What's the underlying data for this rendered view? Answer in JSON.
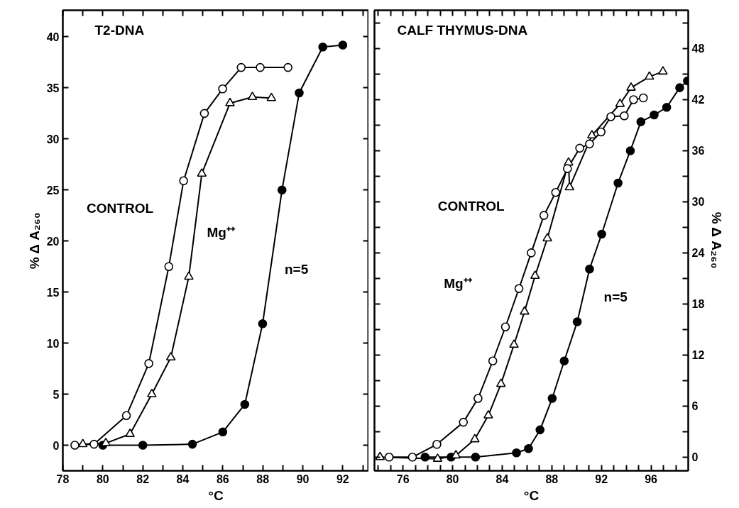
{
  "chart_data": [
    {
      "type": "line",
      "title": "T2-DNA",
      "xlabel": "°C",
      "ylabel": "% Δ A₂₆₀",
      "line_style": "solid",
      "grid": false,
      "xlim": [
        78,
        93.3
      ],
      "ylim": [
        -2.5,
        42.6
      ],
      "xticks": [
        78,
        {
          "value": 79,
          "label": null
        },
        80,
        {
          "value": 81,
          "label": null
        },
        82,
        {
          "value": 83,
          "label": null
        },
        84,
        {
          "value": 85,
          "label": null
        },
        86,
        {
          "value": 87,
          "label": null
        },
        88,
        {
          "value": 89,
          "label": null
        },
        90,
        {
          "value": 91,
          "label": null
        },
        92,
        {
          "value": 93,
          "label": null
        }
      ],
      "yticks": [
        0,
        5,
        10,
        15,
        20,
        25,
        30,
        35,
        40
      ],
      "series": [
        {
          "color": "#000000",
          "marker": "circle",
          "x": [
            78.6,
            79.56,
            81.18,
            82.3,
            83.3,
            84.04,
            85.08,
            85.99,
            86.92,
            87.87,
            89.26
          ],
          "values": [
            0,
            0.1,
            2.9,
            8.0,
            17.5,
            25.9,
            32.5,
            34.9,
            37.0,
            37.0,
            37.0
          ]
        },
        {
          "color": "#000000",
          "marker": "triangle",
          "x": [
            79.0,
            80.15,
            81.36,
            82.45,
            83.4,
            84.3,
            84.95,
            86.36,
            87.48,
            88.43
          ],
          "values": [
            0.1,
            0.2,
            1.1,
            5.0,
            8.6,
            16.5,
            26.6,
            33.5,
            34.1,
            34.0
          ]
        },
        {
          "color": "#000000",
          "marker": "circle",
          "x": [
            80.0,
            82.0,
            84.48,
            86.0,
            87.1,
            87.99,
            88.96,
            89.82,
            91.0,
            92.0
          ],
          "values": [
            0,
            0,
            0.1,
            1.3,
            4.0,
            11.9,
            25.0,
            34.5,
            39.0,
            39.2
          ]
        }
      ],
      "annotations": [
        "CONTROL",
        "Mg⁺⁺",
        "n=5"
      ]
    },
    {
      "type": "line",
      "title": "CALF THYMUS-DNA",
      "xlabel": "°C",
      "ylabel": "% Δ A₂₆₀",
      "line_style": "solid",
      "grid": false,
      "xlim": [
        73.7,
        99
      ],
      "ylim": [
        -1.6,
        52.5
      ],
      "xticks": [
        {
          "value": 74,
          "label": null
        },
        {
          "value": 75,
          "label": null
        },
        76,
        {
          "value": 77,
          "label": null
        },
        {
          "value": 78,
          "label": null
        },
        {
          "value": 79,
          "label": null
        },
        80,
        {
          "value": 81,
          "label": null
        },
        {
          "value": 82,
          "label": null
        },
        {
          "value": 83,
          "label": null
        },
        84,
        {
          "value": 85,
          "label": null
        },
        {
          "value": 86,
          "label": null
        },
        {
          "value": 87,
          "label": null
        },
        88,
        {
          "value": 89,
          "label": null
        },
        {
          "value": 90,
          "label": null
        },
        {
          "value": 91,
          "label": null
        },
        92,
        {
          "value": 93,
          "label": null
        },
        {
          "value": 94,
          "label": null
        },
        {
          "value": 95,
          "label": null
        },
        96,
        {
          "value": 97,
          "label": null
        },
        {
          "value": 98,
          "label": null
        }
      ],
      "yticks": [
        0,
        {
          "value": 3,
          "label": null
        },
        6,
        {
          "value": 9,
          "label": null
        },
        12,
        {
          "value": 15,
          "label": null
        },
        18,
        {
          "value": 21,
          "label": null
        },
        24,
        {
          "value": 27,
          "label": null
        },
        30,
        {
          "value": 33,
          "label": null
        },
        36,
        {
          "value": 39,
          "label": null
        },
        42,
        {
          "value": 45,
          "label": null
        },
        48,
        {
          "value": 51,
          "label": null
        }
      ],
      "series": [
        {
          "color": "#000000",
          "marker": "circle",
          "x": [
            74.88,
            76.76,
            78.73,
            80.87,
            82.05,
            83.24,
            84.26,
            85.35,
            86.34,
            87.36,
            88.31,
            89.26,
            90.25,
            91.04,
            91.97,
            92.76,
            93.84,
            94.59,
            95.38
          ],
          "values": [
            0,
            0,
            1.5,
            4.1,
            6.9,
            11.3,
            15.3,
            19.8,
            24.0,
            28.4,
            31.1,
            33.9,
            36.3,
            36.8,
            38.2,
            40.0,
            40.1,
            42.0,
            42.2
          ]
        },
        {
          "color": "#000000",
          "marker": "triangle",
          "x": [
            74.15,
            78.79,
            80.27,
            81.79,
            82.88,
            83.9,
            84.95,
            85.8,
            86.65,
            87.64,
            89.35,
            89.43,
            91.23,
            93.5,
            94.39,
            95.87,
            96.96
          ],
          "values": [
            0,
            -0.2,
            0.2,
            2.1,
            4.9,
            8.6,
            13.2,
            17.1,
            21.3,
            25.7,
            34.6,
            31.7,
            37.8,
            41.5,
            43.4,
            44.7,
            45.3
          ]
        },
        {
          "color": "#000000",
          "marker": "circle",
          "x": [
            77.78,
            79.88,
            81.85,
            85.15,
            86.12,
            87.05,
            88.03,
            89.0,
            90.05,
            91.04,
            92.02,
            93.34,
            94.33,
            95.18,
            96.25,
            97.26,
            98.31,
            98.94
          ],
          "values": [
            0,
            0,
            0,
            0.5,
            1.0,
            3.2,
            6.9,
            11.3,
            15.9,
            22.1,
            26.2,
            32.2,
            36.0,
            39.4,
            40.2,
            41.1,
            43.4,
            44.2
          ]
        }
      ],
      "annotations": [
        "CONTROL",
        "Mg⁺⁺",
        "n=5"
      ]
    }
  ]
}
